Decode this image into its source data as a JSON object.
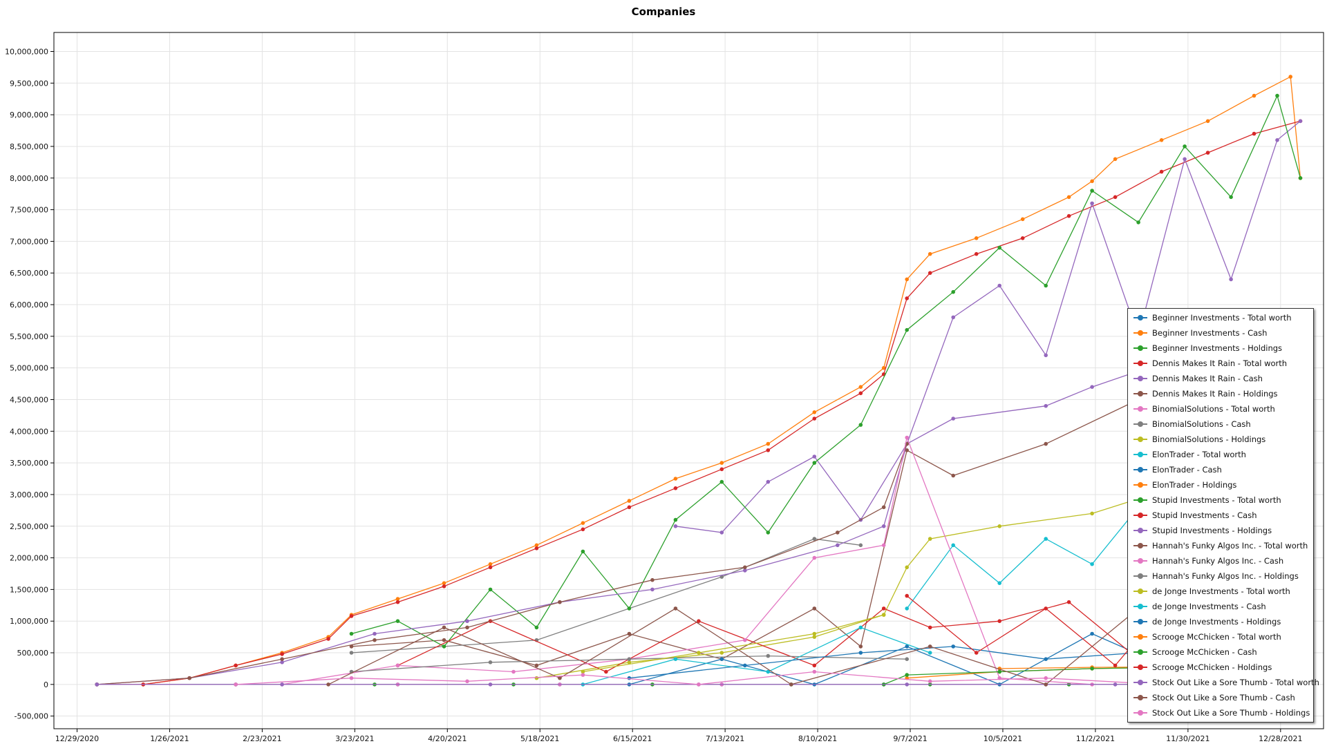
{
  "chart_data": {
    "type": "line",
    "title": "Companies",
    "xlabel": "",
    "ylabel": "",
    "x_ticks": [
      "12/29/2020",
      "1/26/2021",
      "2/23/2021",
      "3/23/2021",
      "4/20/2021",
      "5/18/2021",
      "6/15/2021",
      "7/13/2021",
      "8/10/2021",
      "9/7/2021",
      "10/5/2021",
      "11/2/2021",
      "11/30/2021",
      "12/28/2021"
    ],
    "y_ticks": [
      "-500,000",
      "0",
      "500,000",
      "1,000,000",
      "1,500,000",
      "2,000,000",
      "2,500,000",
      "3,000,000",
      "3,500,000",
      "4,000,000",
      "4,500,000",
      "5,000,000",
      "5,500,000",
      "6,000,000",
      "6,500,000",
      "7,000,000",
      "7,500,000",
      "8,000,000",
      "8,500,000",
      "9,000,000",
      "9,500,000",
      "10,000,000"
    ],
    "xlim": [
      "2020-12-22",
      "2022-01-10"
    ],
    "ylim": [
      -700000,
      10300000
    ],
    "grid": true,
    "legend_position": "right",
    "series": [
      {
        "name": "Beginner Investments - Total worth",
        "color": "#1f77b4",
        "x": [
          "2021-01-04",
          "2021-02-15",
          "2021-04-05",
          "2021-05-24",
          "2021-07-12",
          "2021-08-30",
          "2021-10-18",
          "2021-12-06",
          "2022-01-03"
        ],
        "values": [
          0,
          0,
          0,
          0,
          0,
          0,
          0,
          0,
          0
        ]
      },
      {
        "name": "Beginner Investments - Cash",
        "color": "#ff7f0e",
        "x": [
          "2021-01-04",
          "2021-01-18",
          "2021-02-01",
          "2021-02-15",
          "2021-03-01",
          "2021-03-15",
          "2021-03-22",
          "2021-04-05",
          "2021-04-19",
          "2021-05-03",
          "2021-05-17",
          "2021-05-31",
          "2021-06-14",
          "2021-06-28",
          "2021-07-12",
          "2021-07-26",
          "2021-08-09",
          "2021-08-23",
          "2021-08-30",
          "2021-09-06",
          "2021-09-13",
          "2021-09-27",
          "2021-10-11",
          "2021-10-25",
          "2021-11-01",
          "2021-11-08",
          "2021-11-22",
          "2021-12-06",
          "2021-12-20",
          "2021-12-31",
          "2022-01-03"
        ],
        "values": [
          0,
          0,
          100000,
          300000,
          500000,
          750000,
          1100000,
          1350000,
          1600000,
          1900000,
          2200000,
          2550000,
          2900000,
          3250000,
          3500000,
          3800000,
          4300000,
          4700000,
          5000000,
          6400000,
          6800000,
          7050000,
          7350000,
          7700000,
          7950000,
          8300000,
          8600000,
          8900000,
          9300000,
          9600000,
          8000000
        ]
      },
      {
        "name": "Beginner Investments - Holdings",
        "color": "#2ca02c",
        "x": [
          "2021-01-04",
          "2021-02-15",
          "2021-03-29",
          "2021-05-10",
          "2021-06-21",
          "2021-08-02",
          "2021-09-13",
          "2021-10-25",
          "2021-12-06",
          "2022-01-03"
        ],
        "values": [
          0,
          0,
          0,
          0,
          0,
          0,
          0,
          0,
          0,
          0
        ]
      },
      {
        "name": "Dennis Makes It Rain - Total worth",
        "color": "#d62728",
        "x": [
          "2021-01-04",
          "2021-01-18",
          "2021-02-01",
          "2021-02-15",
          "2021-03-01",
          "2021-03-15",
          "2021-03-22",
          "2021-04-05",
          "2021-04-19",
          "2021-05-03",
          "2021-05-17",
          "2021-05-31",
          "2021-06-14",
          "2021-06-28",
          "2021-07-12",
          "2021-07-26",
          "2021-08-09",
          "2021-08-23",
          "2021-08-30",
          "2021-09-06",
          "2021-09-13",
          "2021-09-27",
          "2021-10-11",
          "2021-10-25",
          "2021-11-08",
          "2021-11-22",
          "2021-12-06",
          "2021-12-20",
          "2022-01-03"
        ],
        "values": [
          0,
          0,
          100000,
          300000,
          480000,
          720000,
          1080000,
          1300000,
          1550000,
          1850000,
          2150000,
          2450000,
          2800000,
          3100000,
          3400000,
          3700000,
          4200000,
          4600000,
          4900000,
          6100000,
          6500000,
          6800000,
          7050000,
          7400000,
          7700000,
          8100000,
          8400000,
          8700000,
          8900000
        ]
      },
      {
        "name": "Dennis Makes It Rain - Cash",
        "color": "#9467bd",
        "x": [
          "2021-06-28",
          "2021-07-12",
          "2021-07-26",
          "2021-08-09",
          "2021-08-23",
          "2021-09-06",
          "2021-09-20",
          "2021-10-04",
          "2021-10-18",
          "2021-11-01",
          "2021-11-15",
          "2021-11-29",
          "2021-12-13",
          "2021-12-27",
          "2022-01-03"
        ],
        "values": [
          2500000,
          2400000,
          3200000,
          3600000,
          2600000,
          3800000,
          5800000,
          6300000,
          5200000,
          7600000,
          5500000,
          8300000,
          6400000,
          8600000,
          8900000
        ]
      },
      {
        "name": "Dennis Makes It Rain - Holdings",
        "color": "#8c564b",
        "x": [
          "2021-03-22",
          "2021-04-19",
          "2021-05-17",
          "2021-06-14",
          "2021-07-12",
          "2021-08-09",
          "2021-08-23",
          "2021-09-06",
          "2021-09-20",
          "2021-10-18",
          "2021-11-15",
          "2021-12-06",
          "2021-12-20"
        ],
        "values": [
          600000,
          700000,
          300000,
          800000,
          400000,
          1200000,
          600000,
          3700000,
          3300000,
          3800000,
          4500000,
          4900000,
          5000000
        ]
      },
      {
        "name": "BinomialSolutions - Total worth",
        "color": "#e377c2",
        "x": [
          "2021-01-04",
          "2021-02-15",
          "2021-04-05",
          "2021-05-24",
          "2021-07-12",
          "2021-08-30",
          "2021-10-18",
          "2021-12-06"
        ],
        "values": [
          0,
          0,
          0,
          0,
          0,
          0,
          0,
          0
        ]
      },
      {
        "name": "BinomialSolutions - Cash",
        "color": "#7f7f7f",
        "x": [
          "2021-03-22",
          "2021-05-17",
          "2021-07-12",
          "2021-08-09",
          "2021-08-23"
        ],
        "values": [
          500000,
          700000,
          1700000,
          2300000,
          2200000
        ]
      },
      {
        "name": "BinomialSolutions - Holdings",
        "color": "#bcbd22",
        "x": [
          "2021-05-17",
          "2021-06-14",
          "2021-07-12",
          "2021-08-09",
          "2021-08-30",
          "2021-09-06",
          "2021-09-13",
          "2021-10-04",
          "2021-11-01",
          "2021-11-22",
          "2021-12-06"
        ],
        "values": [
          100000,
          350000,
          500000,
          750000,
          1100000,
          1850000,
          2300000,
          2500000,
          2700000,
          3050000,
          3150000
        ]
      },
      {
        "name": "ElonTrader - Total worth",
        "color": "#17becf",
        "x": [
          "2021-09-06",
          "2021-09-20",
          "2021-10-04",
          "2021-10-18",
          "2021-11-01",
          "2021-11-15",
          "2021-11-29",
          "2021-12-06"
        ],
        "values": [
          1200000,
          2200000,
          1600000,
          2300000,
          1900000,
          2800000,
          2000000,
          3100000
        ]
      },
      {
        "name": "ElonTrader - Cash",
        "color": "#1f77b4",
        "x": [
          "2021-06-14",
          "2021-07-12",
          "2021-08-09",
          "2021-09-06",
          "2021-10-04",
          "2021-11-01",
          "2021-12-06"
        ],
        "values": [
          0,
          400000,
          0,
          600000,
          0,
          800000,
          0
        ]
      },
      {
        "name": "ElonTrader - Holdings",
        "color": "#ff7f0e",
        "x": [
          "2021-09-06",
          "2021-10-04",
          "2021-11-01",
          "2021-12-06"
        ],
        "values": [
          100000,
          200000,
          250000,
          280000
        ]
      },
      {
        "name": "Stupid Investments - Total worth",
        "color": "#2ca02c",
        "x": [
          "2021-03-22",
          "2021-04-05",
          "2021-04-19",
          "2021-05-03",
          "2021-05-17",
          "2021-05-31",
          "2021-06-14",
          "2021-06-28",
          "2021-07-12",
          "2021-07-26",
          "2021-08-09",
          "2021-08-23",
          "2021-09-06",
          "2021-09-20",
          "2021-10-04",
          "2021-10-18",
          "2021-11-01",
          "2021-11-15",
          "2021-11-29",
          "2021-12-13",
          "2021-12-27",
          "2022-01-03"
        ],
        "values": [
          800000,
          1000000,
          600000,
          1500000,
          900000,
          2100000,
          1200000,
          2600000,
          3200000,
          2400000,
          3500000,
          4100000,
          5600000,
          6200000,
          6900000,
          6300000,
          7800000,
          7300000,
          8500000,
          7700000,
          9300000,
          8000000
        ]
      },
      {
        "name": "Stupid Investments - Cash",
        "color": "#d62728",
        "x": [
          "2021-04-05",
          "2021-05-03",
          "2021-06-07",
          "2021-07-05",
          "2021-08-09",
          "2021-08-30",
          "2021-09-13",
          "2021-10-04",
          "2021-10-25",
          "2021-11-15",
          "2021-12-06"
        ],
        "values": [
          300000,
          1000000,
          200000,
          1000000,
          300000,
          1200000,
          900000,
          1000000,
          1300000,
          400000,
          1500000
        ]
      },
      {
        "name": "Stupid Investments - Holdings",
        "color": "#9467bd",
        "x": [
          "2021-01-04",
          "2021-02-01",
          "2021-03-01",
          "2021-03-29",
          "2021-04-26",
          "2021-05-24",
          "2021-06-21",
          "2021-07-19",
          "2021-08-16",
          "2021-08-30",
          "2021-09-06",
          "2021-09-20",
          "2021-10-18",
          "2021-11-01",
          "2021-11-15",
          "2021-12-06",
          "2021-12-20"
        ],
        "values": [
          0,
          100000,
          350000,
          800000,
          1000000,
          1300000,
          1500000,
          1800000,
          2200000,
          2500000,
          3800000,
          4200000,
          4400000,
          4700000,
          4950000,
          5000000,
          5050000
        ]
      },
      {
        "name": "Hannah's Funky Algos Inc. - Total worth",
        "color": "#8c564b",
        "x": [
          "2021-01-04",
          "2021-02-01",
          "2021-03-01",
          "2021-03-29",
          "2021-04-26",
          "2021-05-24",
          "2021-06-21",
          "2021-07-19",
          "2021-08-16",
          "2021-08-30",
          "2021-09-06"
        ],
        "values": [
          0,
          100000,
          400000,
          700000,
          900000,
          1300000,
          1650000,
          1850000,
          2400000,
          2800000,
          3800000
        ]
      },
      {
        "name": "Hannah's Funky Algos Inc. - Cash",
        "color": "#e377c2",
        "x": [
          "2021-03-01",
          "2021-04-05",
          "2021-05-10",
          "2021-06-14",
          "2021-07-19",
          "2021-08-09",
          "2021-08-30",
          "2021-09-06",
          "2021-10-04",
          "2021-11-01"
        ],
        "values": [
          0,
          300000,
          200000,
          400000,
          700000,
          2000000,
          2200000,
          3900000,
          100000,
          0
        ]
      },
      {
        "name": "Hannah's Funky Algos Inc. - Holdings",
        "color": "#7f7f7f",
        "x": [
          "2021-03-22",
          "2021-05-03",
          "2021-06-14",
          "2021-07-26",
          "2021-09-06"
        ],
        "values": [
          200000,
          350000,
          400000,
          450000,
          400000
        ]
      },
      {
        "name": "de Jonge Investments - Total worth",
        "color": "#bcbd22",
        "x": [
          "2021-05-31",
          "2021-07-05",
          "2021-08-09",
          "2021-08-30"
        ],
        "values": [
          200000,
          500000,
          800000,
          1100000
        ]
      },
      {
        "name": "de Jonge Investments - Cash",
        "color": "#17becf",
        "x": [
          "2021-05-31",
          "2021-06-28",
          "2021-07-26",
          "2021-08-23",
          "2021-09-13"
        ],
        "values": [
          0,
          400000,
          200000,
          900000,
          500000
        ]
      },
      {
        "name": "de Jonge Investments - Holdings",
        "color": "#1f77b4",
        "x": [
          "2021-06-14",
          "2021-07-19",
          "2021-08-23",
          "2021-09-20",
          "2021-10-18",
          "2021-11-15"
        ],
        "values": [
          100000,
          300000,
          500000,
          600000,
          400000,
          500000
        ]
      },
      {
        "name": "Scrooge McChicken - Total worth",
        "color": "#ff7f0e",
        "x": [
          "2021-10-04",
          "2021-11-01",
          "2021-12-06"
        ],
        "values": [
          250000,
          270000,
          280000
        ]
      },
      {
        "name": "Scrooge McChicken - Cash",
        "color": "#2ca02c",
        "x": [
          "2021-08-30",
          "2021-09-06",
          "2021-10-04",
          "2021-11-01",
          "2021-12-06"
        ],
        "values": [
          0,
          150000,
          200000,
          250000,
          280000
        ]
      },
      {
        "name": "Scrooge McChicken - Holdings",
        "color": "#d62728",
        "x": [
          "2021-09-06",
          "2021-09-27",
          "2021-10-18",
          "2021-11-08",
          "2021-11-29"
        ],
        "values": [
          1400000,
          500000,
          1200000,
          300000,
          1600000
        ]
      },
      {
        "name": "Stock Out Like a Sore Thumb - Total worth",
        "color": "#9467bd",
        "x": [
          "2021-01-04",
          "2021-03-01",
          "2021-05-03",
          "2021-07-05",
          "2021-09-06",
          "2021-11-08",
          "2021-12-06"
        ],
        "values": [
          0,
          0,
          0,
          0,
          0,
          0,
          0
        ]
      },
      {
        "name": "Stock Out Like a Sore Thumb - Cash",
        "color": "#8c564b",
        "x": [
          "2021-03-15",
          "2021-04-19",
          "2021-05-24",
          "2021-06-28",
          "2021-08-02",
          "2021-09-13",
          "2021-10-18",
          "2021-11-22"
        ],
        "values": [
          0,
          900000,
          100000,
          1200000,
          0,
          600000,
          0,
          1500000
        ]
      },
      {
        "name": "Stock Out Like a Sore Thumb - Holdings",
        "color": "#e377c2",
        "x": [
          "2021-02-15",
          "2021-03-22",
          "2021-04-26",
          "2021-05-31",
          "2021-07-05",
          "2021-08-09",
          "2021-09-13",
          "2021-10-18",
          "2021-11-22"
        ],
        "values": [
          0,
          100000,
          50000,
          150000,
          0,
          200000,
          50000,
          100000,
          0
        ]
      }
    ]
  }
}
